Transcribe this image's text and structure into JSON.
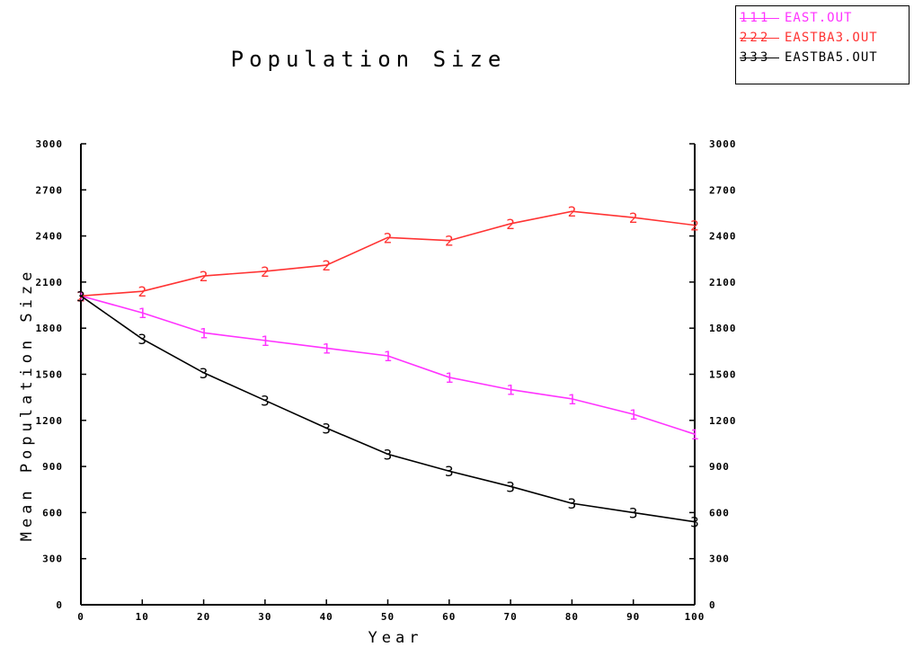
{
  "chart_data": {
    "type": "line",
    "title": "Population Size",
    "xlabel": "Year",
    "ylabel": "Mean Population Size",
    "x": [
      0,
      10,
      20,
      30,
      40,
      50,
      60,
      70,
      80,
      90,
      100
    ],
    "x_tick_labels": [
      "0",
      "10",
      "20",
      "30",
      "40",
      "50",
      "60",
      "70",
      "80",
      "90",
      "100"
    ],
    "y_tick_labels": [
      "0",
      "300",
      "600",
      "900",
      "1200",
      "1500",
      "1800",
      "2100",
      "2400",
      "2700",
      "3000"
    ],
    "y_ticks": [
      0,
      300,
      600,
      900,
      1200,
      1500,
      1800,
      2100,
      2400,
      2700,
      3000
    ],
    "xlim": [
      0,
      100
    ],
    "ylim": [
      0,
      3000
    ],
    "grid": false,
    "legend_position": "top-right",
    "series": [
      {
        "name": "EAST.OUT",
        "marker": "1",
        "color": "#ff33ff",
        "values": [
          2010,
          1900,
          1770,
          1720,
          1670,
          1620,
          1480,
          1400,
          1340,
          1240,
          1110
        ]
      },
      {
        "name": "EASTBA3.OUT",
        "marker": "2",
        "color": "#ff3333",
        "values": [
          2010,
          2040,
          2140,
          2170,
          2210,
          2390,
          2370,
          2480,
          2560,
          2520,
          2470
        ]
      },
      {
        "name": "EASTBA5.OUT",
        "marker": "3",
        "color": "#000000",
        "values": [
          2010,
          1730,
          1510,
          1330,
          1150,
          980,
          870,
          770,
          660,
          600,
          540
        ]
      }
    ]
  }
}
